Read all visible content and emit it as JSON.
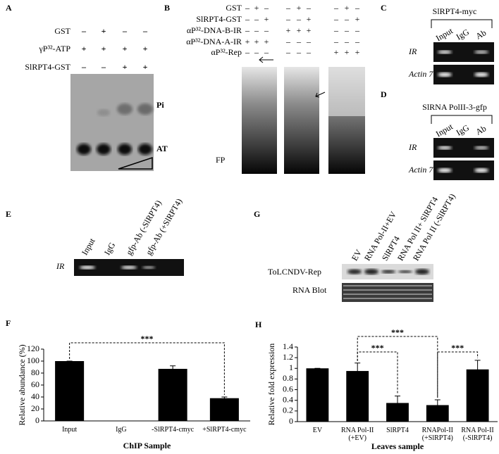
{
  "panel_labels": [
    "A",
    "B",
    "C",
    "D",
    "E",
    "F",
    "G",
    "H"
  ],
  "panel_a": {
    "rows": [
      {
        "label": "GST",
        "signs": [
          "–",
          "+",
          "–",
          "–"
        ]
      },
      {
        "label": "γP³²-ATP",
        "signs": [
          "+",
          "+",
          "+",
          "+"
        ]
      },
      {
        "label": "SlRPT4-GST",
        "signs": [
          "–",
          "–",
          "+",
          "+"
        ]
      }
    ],
    "bands": [
      "Pi",
      "AT"
    ]
  },
  "panel_b": {
    "rows": [
      {
        "label": "GST",
        "signs": [
          "–",
          "+",
          "–",
          "–",
          "+",
          "–",
          "–",
          "+",
          "–"
        ]
      },
      {
        "label": "SlRPT4-GST",
        "signs": [
          "–",
          "–",
          "+",
          "–",
          "–",
          "+",
          "–",
          "–",
          "+"
        ]
      },
      {
        "label": "αP³²-DNA-B-IR",
        "signs": [
          "–",
          "–",
          "–",
          "+",
          "+",
          "+",
          "–",
          "–",
          "–"
        ]
      },
      {
        "label": "αP³²-DNA-A-IR",
        "signs": [
          "+",
          "+",
          "+",
          "–",
          "–",
          "–",
          "–",
          "–",
          "–"
        ]
      },
      {
        "label": "αP³²-Rep",
        "signs": [
          "–",
          "–",
          "–",
          "–",
          "–",
          "–",
          "+",
          "+",
          "+"
        ]
      }
    ],
    "bands": [
      "FP"
    ]
  },
  "panel_c": {
    "header": "SlRPT4-myc",
    "lanes": [
      "Input",
      "IgG",
      "Ab"
    ],
    "rows": [
      "IR",
      "Actin 7"
    ]
  },
  "panel_d": {
    "header": "SlRNA PolII-3-gfp",
    "lanes": [
      "Input",
      "IgG",
      "Ab"
    ],
    "rows": [
      "IR",
      "Actin 7"
    ]
  },
  "panel_e": {
    "lanes": [
      "Input",
      "IgG",
      "gfp-Ab (-SlRPT4)",
      "gfp-Ab (+SlRPT4)"
    ],
    "rows": [
      "IR"
    ]
  },
  "panel_g": {
    "lanes": [
      "EV",
      "RNA Pol-II+EV",
      "SlRPT4",
      "RNA Pol II+ SlRPT4",
      "RNA Pol II (-SlRPT4)"
    ],
    "rows": [
      "ToLCNDV-Rep",
      "RNA Blot"
    ]
  },
  "chart_data": [
    {
      "type": "bar",
      "categories": [
        "Input",
        "IgG",
        "-SlRPT4-cmyc",
        "+SlRPT4-cmyc"
      ],
      "values": [
        100,
        0,
        87,
        38
      ],
      "errors": [
        0,
        0,
        5,
        2
      ],
      "color": "#000000",
      "ylim": [
        0,
        120
      ],
      "yticks": [
        0,
        20,
        40,
        60,
        80,
        100,
        120
      ],
      "y_label": "Relative abundance (%)",
      "x_label": "ChIP Sample",
      "annotations": [
        "***"
      ]
    },
    {
      "type": "bar",
      "categories": [
        "EV",
        "RNA Pol-II (+EV)",
        "SlRPT4",
        "RNAPol-II (+SlRPT4)",
        "RNA Pol-II (-SlRPT4)"
      ],
      "values": [
        1,
        0.95,
        0.35,
        0.31,
        0.98
      ],
      "errors": [
        0,
        0.15,
        0.13,
        0.1,
        0.17
      ],
      "color": "#000000",
      "ylim": [
        0,
        1.4
      ],
      "yticks": [
        0,
        0.2,
        0.4,
        0.6,
        0.8,
        1,
        1.2,
        1.4
      ],
      "y_label": "Relative fold expression",
      "x_label": "Leaves sample",
      "annotations": [
        "***",
        "***",
        "***"
      ]
    }
  ]
}
